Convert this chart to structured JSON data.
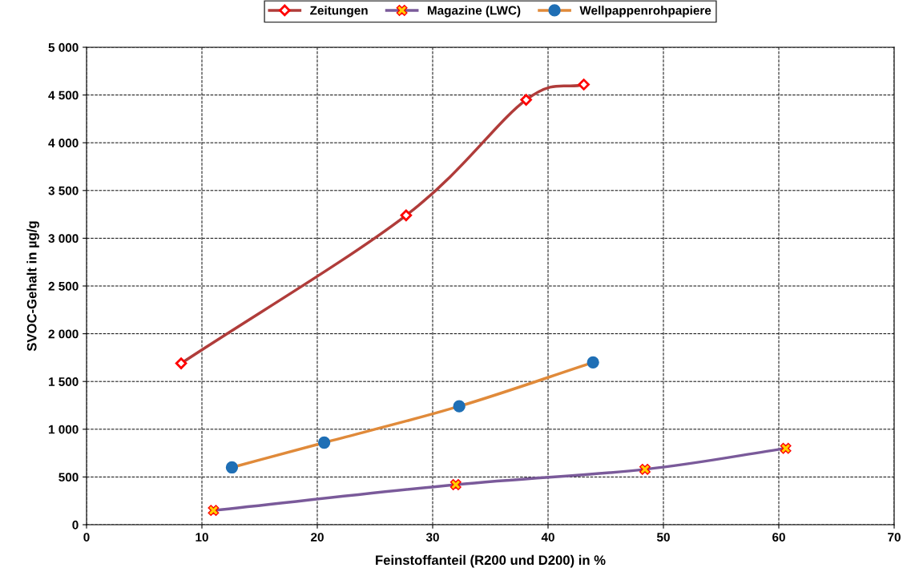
{
  "chart_data": {
    "type": "line",
    "xlabel": "Feinstoffanteil (R200 und D200) in %",
    "ylabel": "SVOC-Gehalt in µg/g",
    "xlim": [
      0,
      70
    ],
    "xticks": [
      0,
      10,
      20,
      30,
      40,
      50,
      60,
      70
    ],
    "ylim": [
      0,
      5000
    ],
    "yticks": [
      0,
      {
        "value": 500,
        "label": "500"
      },
      {
        "value": 1000,
        "label": "1 000"
      },
      {
        "value": 1500,
        "label": "1 500"
      },
      {
        "value": 2000,
        "label": "2 000"
      },
      {
        "value": 2500,
        "label": "2 500"
      },
      {
        "value": 3000,
        "label": "3 000"
      },
      {
        "value": 3500,
        "label": "3 500"
      },
      {
        "value": 4000,
        "label": "4 000"
      },
      {
        "value": 4500,
        "label": "4 500"
      },
      {
        "value": 5000,
        "label": "5 000"
      }
    ],
    "grid": true,
    "legend": "top",
    "series": [
      {
        "name": "Zeitungen",
        "color": "#b03c3a",
        "marker": "diamond",
        "x": [
          8.2,
          27.7,
          38.1,
          43.1
        ],
        "values": [
          1690,
          3240,
          4450,
          4610
        ]
      },
      {
        "name": "Magazine (LWC)",
        "color": "#7a5a9a",
        "marker": "cross",
        "x": [
          11.0,
          32.0,
          48.4,
          60.6
        ],
        "values": [
          150,
          420,
          580,
          800
        ]
      },
      {
        "name": "Wellpappenrohpapiere",
        "color": "#e08a3a",
        "marker": "circle",
        "x": [
          12.6,
          20.6,
          32.3,
          43.9
        ],
        "values": [
          600,
          860,
          1240,
          1700
        ]
      }
    ]
  }
}
